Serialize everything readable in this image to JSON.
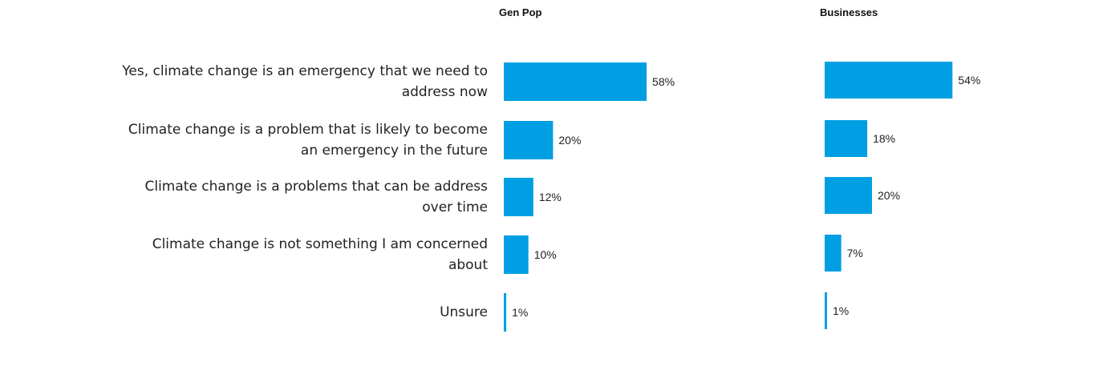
{
  "chart_data": {
    "type": "bar",
    "orientation": "horizontal",
    "categories": [
      "Yes, climate change is an emergency that we need to address now",
      "Climate change is a problem that is likely to become an emergency in the future",
      "Climate change is a problems that can be address over time",
      "Climate change is not something I am concerned about",
      "Unsure"
    ],
    "category_lines": [
      [
        "Yes, climate change is an emergency that we need to",
        "address now"
      ],
      [
        "Climate change is a problem that is likely to become",
        "an emergency in the future"
      ],
      [
        "Climate change is a problems that can be address",
        "over time"
      ],
      [
        "Climate change is not something I am concerned",
        "about"
      ],
      [
        "Unsure"
      ]
    ],
    "series": [
      {
        "name": "Gen Pop",
        "values": [
          58,
          20,
          12,
          10,
          1
        ],
        "labels": [
          "58%",
          "20%",
          "12%",
          "10%",
          "1%"
        ]
      },
      {
        "name": "Businesses",
        "values": [
          54,
          18,
          20,
          7,
          1
        ],
        "labels": [
          "54%",
          "18%",
          "20%",
          "7%",
          "1%"
        ]
      }
    ],
    "unit": "%",
    "bar_color": "#009FE3",
    "grid": false,
    "legend": "none"
  }
}
